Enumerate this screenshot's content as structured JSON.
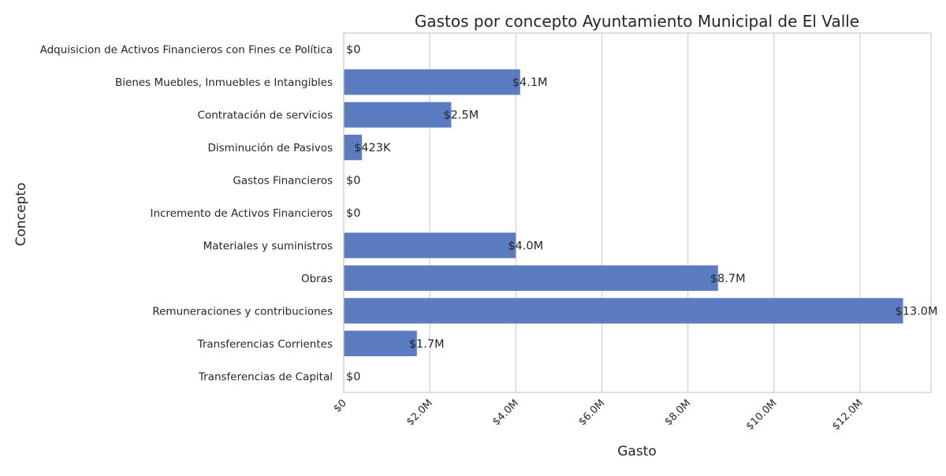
{
  "chart_data": {
    "type": "bar",
    "orientation": "horizontal",
    "title": "Gastos por concepto Ayuntamiento Municipal de El Valle",
    "xlabel": "Gasto",
    "ylabel": "Concepto",
    "categories": [
      "Adquisicion de Activos Financieros con Fines ce Política",
      "Bienes Muebles, Inmuebles e Intangibles",
      "Contratación de servicios",
      "Disminución de Pasivos",
      "Gastos Financieros",
      "Incremento de Activos Financieros",
      "Materiales y suministros",
      "Obras",
      "Remuneraciones y contribuciones",
      "Transferencias Corrientes",
      "Transferencias de Capital"
    ],
    "values": [
      0,
      4100000,
      2500000,
      423000,
      0,
      0,
      4000000,
      8700000,
      13000000,
      1700000,
      0
    ],
    "data_labels": [
      "$0",
      "$4.1M",
      "$2.5M",
      "$423K",
      "$0",
      "$0",
      "$4.0M",
      "$8.7M",
      "$13.0M",
      "$1.7M",
      "$0"
    ],
    "xticks": [
      0,
      2000000,
      4000000,
      6000000,
      8000000,
      10000000,
      12000000
    ],
    "xtick_labels": [
      "$0",
      "$2.0M",
      "$4.0M",
      "$6.0M",
      "$8.0M",
      "$10.0M",
      "$12.0M"
    ],
    "xlim": [
      0,
      13650000
    ],
    "grid": "vertical",
    "bar_color": "#5b7cc0",
    "grid_color": "#cfcfcf",
    "spine_color": "#cccccc"
  }
}
